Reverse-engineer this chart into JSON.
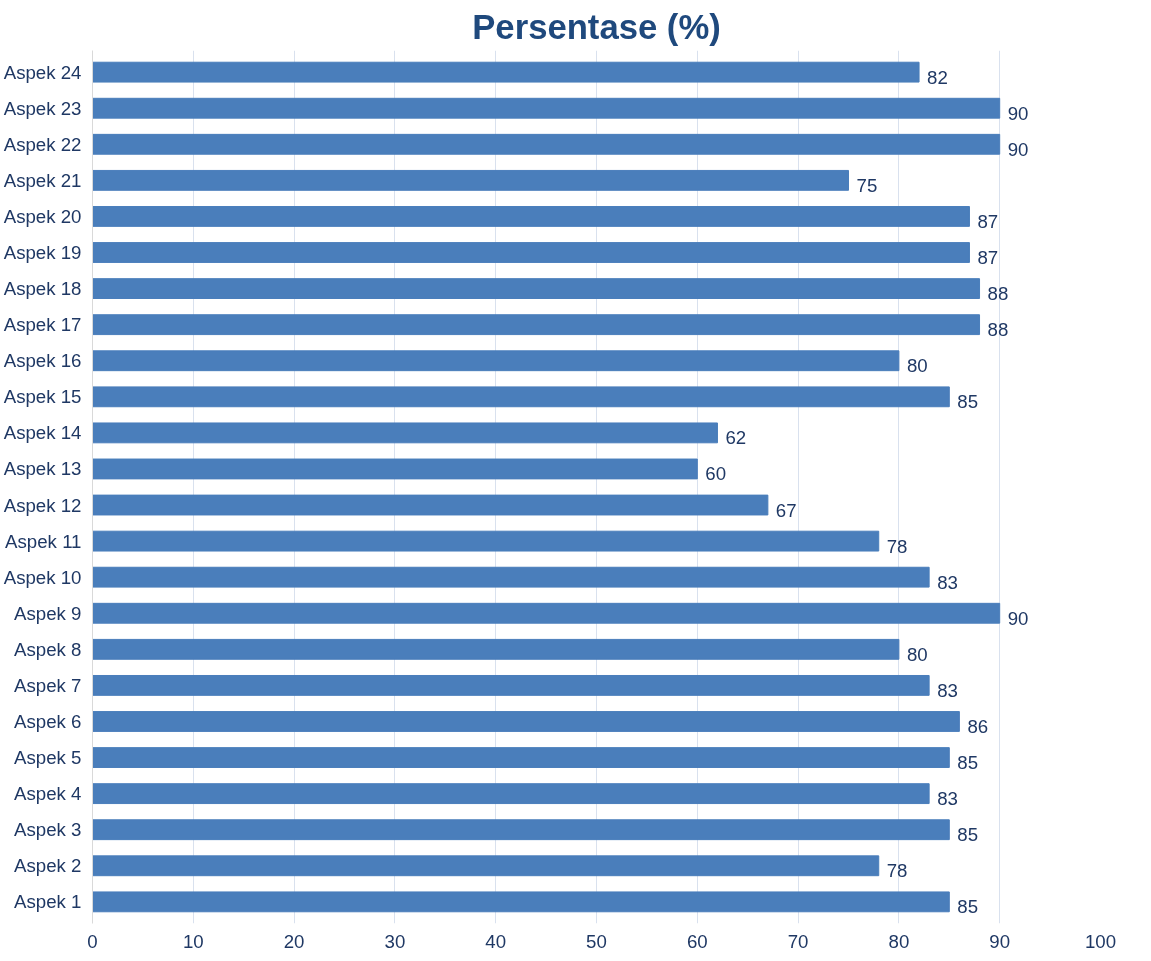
{
  "chart_data": {
    "type": "bar",
    "orientation": "horizontal",
    "title": "Persentase (%)",
    "categories": [
      "Aspek 24",
      "Aspek 23",
      "Aspek 22",
      "Aspek 21",
      "Aspek 20",
      "Aspek 19",
      "Aspek 18",
      "Aspek 17",
      "Aspek 16",
      "Aspek 15",
      "Aspek 14",
      "Aspek 13",
      "Aspek 12",
      "Aspek 11",
      "Aspek 10",
      "Aspek 9",
      "Aspek 8",
      "Aspek 7",
      "Aspek 6",
      "Aspek 5",
      "Aspek 4",
      "Aspek 3",
      "Aspek 2",
      "Aspek 1"
    ],
    "values": [
      82,
      90,
      90,
      75,
      87,
      87,
      88,
      88,
      80,
      85,
      62,
      60,
      67,
      78,
      83,
      90,
      80,
      83,
      86,
      85,
      83,
      85,
      78,
      85
    ],
    "color": "#4a7ebb",
    "xlim": [
      0,
      100
    ],
    "xticks": [
      0,
      10,
      20,
      30,
      40,
      50,
      60,
      70,
      80,
      90,
      100
    ],
    "grid": "x",
    "data_labels": true
  }
}
